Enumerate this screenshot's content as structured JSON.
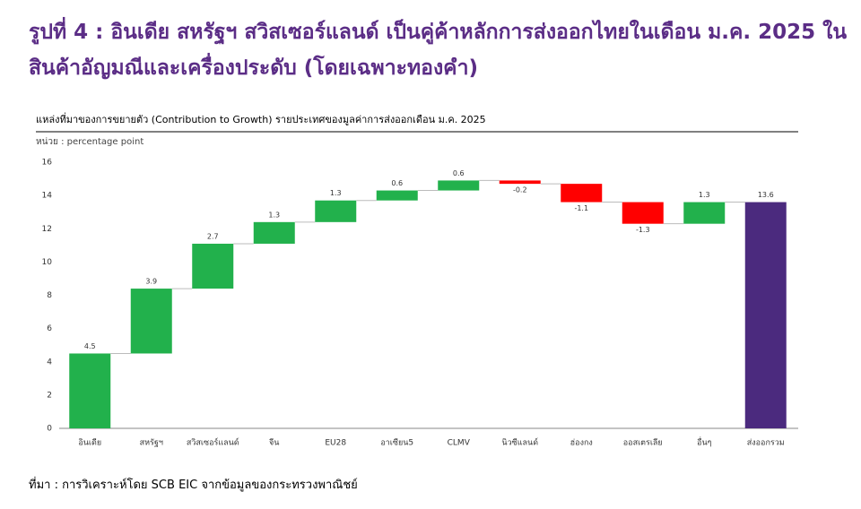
{
  "chart_data": {
    "type": "waterfall",
    "page_title": "รูปที่ 4 : อินเดีย สหรัฐฯ สวิสเซอร์แลนด์ เป็นคู่ค้าหลักการส่งออกไทยในเดือน ม.ค. 2025 ในสินค้าอัญมณีและเครื่องประดับ (โดยเฉพาะทองคำ)",
    "title": "แหล่งที่มาของการขยายตัว (Contribution to Growth) รายประเทศของมูลค่าการส่งออกเดือน ม.ค. 2025",
    "subtitle": "หน่วย : percentage point",
    "source": "ที่มา : การวิเคราะห์โดย SCB EIC จากข้อมูลของกระทรวงพาณิชย์",
    "categories": [
      "อินเดีย",
      "สหรัฐฯ",
      "สวิสเซอร์แลนด์",
      "จีน",
      "EU28",
      "อาเซียน5",
      "CLMV",
      "นิวซีแลนด์",
      "ฮ่องกง",
      "ออสเตรเลีย",
      "อื่นๆ",
      "ส่งออกรวม"
    ],
    "values": [
      4.5,
      3.9,
      2.7,
      1.3,
      1.3,
      0.6,
      0.6,
      -0.2,
      -1.1,
      -1.3,
      1.3,
      13.6
    ],
    "measure": [
      "relative",
      "relative",
      "relative",
      "relative",
      "relative",
      "relative",
      "relative",
      "relative",
      "relative",
      "relative",
      "relative",
      "total"
    ],
    "colors": {
      "increase": "#22b14c",
      "decrease": "#ff0000",
      "total": "#4b2a7e"
    },
    "ylim": [
      0,
      16
    ],
    "yticks": [
      0,
      2,
      4,
      6,
      8,
      10,
      12,
      14,
      16
    ],
    "grid": false
  }
}
